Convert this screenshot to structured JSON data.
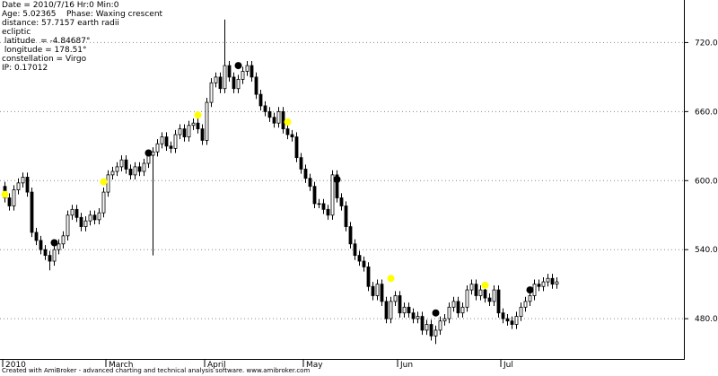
{
  "chart_data": {
    "type": "candlestick",
    "info_lines": [
      "Date = 2010/7/16 Hr:0 Min:0",
      "Age: 5.02365    Phase: Waxing crescent",
      "distance: 57.7157 earth radii",
      "ecliptic",
      " latitude  = -4.84687°",
      " longitude = 178.51°",
      "constellation = Virgo",
      "IP: 0.17012"
    ],
    "footer": "Created with AmiBroker - advanced charting and technical analysis software. www.amibroker.com",
    "categories": [
      "2010",
      null,
      null,
      null,
      null,
      null,
      null,
      null,
      null,
      null,
      null,
      null,
      null,
      null,
      null,
      null,
      null,
      null,
      null,
      null,
      null,
      null,
      null,
      "March",
      null,
      null,
      null,
      null,
      null,
      null,
      null,
      null,
      null,
      null,
      null,
      null,
      null,
      null,
      null,
      null,
      null,
      null,
      null,
      null,
      null,
      "April",
      null,
      null,
      null,
      null,
      null,
      null,
      null,
      null,
      null,
      null,
      null,
      null,
      null,
      null,
      null,
      null,
      null,
      null,
      null,
      null,
      null,
      "May",
      null,
      null,
      null,
      null,
      null,
      null,
      null,
      null,
      null,
      null,
      null,
      null,
      null,
      null,
      null,
      null,
      null,
      null,
      null,
      null,
      "Jun",
      null,
      null,
      null,
      null,
      null,
      null,
      null,
      null,
      null,
      null,
      null,
      null,
      null,
      null,
      null,
      null,
      null,
      null,
      null,
      null,
      null,
      null,
      "Jul",
      null,
      null,
      null,
      null,
      null,
      null,
      null,
      null,
      null,
      null,
      null,
      null
    ],
    "open": [
      595,
      585,
      578,
      592,
      598,
      603,
      590,
      555,
      548,
      540,
      535,
      530,
      540,
      545,
      552,
      570,
      575,
      568,
      560,
      565,
      570,
      566,
      572,
      590,
      605,
      608,
      612,
      618,
      610,
      605,
      612,
      608,
      615,
      622,
      625,
      632,
      638,
      630,
      628,
      640,
      645,
      638,
      648,
      650,
      645,
      635,
      668,
      685,
      690,
      680,
      700,
      690,
      680,
      688,
      695,
      700,
      690,
      675,
      665,
      660,
      655,
      650,
      660,
      645,
      640,
      638,
      620,
      610,
      602,
      595,
      580,
      580,
      575,
      570,
      605,
      585,
      578,
      560,
      545,
      535,
      530,
      525,
      508,
      500,
      510,
      495,
      480,
      495,
      500,
      485,
      490,
      485,
      480,
      482,
      470,
      475,
      465,
      470,
      478,
      480,
      490,
      495,
      485,
      490,
      505,
      510,
      500,
      505,
      498,
      495,
      505,
      485,
      480,
      478,
      475,
      482,
      490,
      495,
      500,
      510,
      508,
      512,
      515,
      510
    ],
    "high": [
      599,
      589,
      596,
      602,
      607,
      607,
      594,
      559,
      552,
      544,
      539,
      544,
      549,
      556,
      574,
      579,
      579,
      572,
      569,
      574,
      574,
      576,
      594,
      609,
      612,
      616,
      622,
      622,
      614,
      616,
      616,
      619,
      626,
      629,
      636,
      642,
      642,
      634,
      644,
      649,
      649,
      652,
      654,
      654,
      649,
      672,
      689,
      694,
      694,
      740,
      704,
      694,
      692,
      699,
      704,
      704,
      694,
      679,
      669,
      664,
      659,
      664,
      664,
      649,
      644,
      642,
      624,
      614,
      606,
      599,
      584,
      584,
      579,
      609,
      609,
      589,
      582,
      564,
      549,
      539,
      534,
      529,
      512,
      514,
      514,
      499,
      499,
      504,
      504,
      494,
      494,
      489,
      486,
      486,
      479,
      479,
      474,
      482,
      484,
      494,
      499,
      499,
      494,
      509,
      514,
      514,
      509,
      509,
      502,
      509,
      509,
      489,
      484,
      482,
      486,
      494,
      499,
      504,
      514,
      514,
      516,
      519,
      519,
      516
    ],
    "low": [
      581,
      574,
      574,
      588,
      594,
      586,
      551,
      544,
      536,
      531,
      522,
      526,
      536,
      541,
      548,
      566,
      564,
      556,
      556,
      561,
      562,
      562,
      568,
      586,
      601,
      604,
      608,
      606,
      601,
      601,
      604,
      604,
      611,
      535,
      621,
      628,
      626,
      624,
      624,
      636,
      634,
      634,
      644,
      641,
      631,
      631,
      664,
      681,
      676,
      676,
      686,
      676,
      676,
      684,
      691,
      686,
      671,
      661,
      656,
      651,
      646,
      646,
      641,
      636,
      634,
      616,
      606,
      598,
      591,
      576,
      576,
      571,
      566,
      566,
      581,
      574,
      556,
      541,
      531,
      526,
      521,
      504,
      496,
      496,
      491,
      476,
      476,
      491,
      481,
      481,
      481,
      476,
      476,
      466,
      466,
      461,
      458,
      466,
      474,
      476,
      486,
      481,
      481,
      486,
      501,
      496,
      496,
      494,
      491,
      491,
      481,
      476,
      474,
      471,
      471,
      478,
      486,
      491,
      496,
      504,
      504,
      508,
      506,
      506
    ],
    "close": [
      585,
      578,
      592,
      598,
      603,
      590,
      555,
      548,
      540,
      535,
      530,
      540,
      545,
      552,
      570,
      575,
      568,
      560,
      565,
      570,
      566,
      572,
      590,
      605,
      608,
      612,
      618,
      610,
      605,
      612,
      608,
      615,
      622,
      625,
      632,
      638,
      630,
      628,
      640,
      645,
      638,
      648,
      650,
      645,
      635,
      668,
      685,
      690,
      680,
      700,
      690,
      680,
      688,
      695,
      700,
      690,
      675,
      665,
      660,
      655,
      650,
      660,
      645,
      640,
      638,
      620,
      610,
      602,
      595,
      580,
      580,
      575,
      570,
      605,
      585,
      578,
      560,
      545,
      535,
      530,
      525,
      508,
      500,
      510,
      495,
      480,
      495,
      500,
      485,
      490,
      485,
      480,
      482,
      470,
      475,
      465,
      470,
      478,
      480,
      490,
      495,
      485,
      490,
      505,
      510,
      500,
      505,
      498,
      495,
      505,
      485,
      480,
      478,
      475,
      482,
      490,
      495,
      500,
      510,
      508,
      512,
      515,
      510,
      512
    ],
    "markers": [
      {
        "index": 0,
        "value": 588,
        "color": "#ffff00"
      },
      {
        "index": 11,
        "value": 546,
        "color": "#000000"
      },
      {
        "index": 22,
        "value": 599,
        "color": "#ffff00"
      },
      {
        "index": 32,
        "value": 624,
        "color": "#000000"
      },
      {
        "index": 43,
        "value": 657,
        "color": "#ffff00"
      },
      {
        "index": 52,
        "value": 700,
        "color": "#000000"
      },
      {
        "index": 63,
        "value": 651,
        "color": "#ffff00"
      },
      {
        "index": 74,
        "value": 601,
        "color": "#000000"
      },
      {
        "index": 86,
        "value": 515,
        "color": "#ffff00"
      },
      {
        "index": 96,
        "value": 485,
        "color": "#000000"
      },
      {
        "index": 107,
        "value": 509,
        "color": "#ffff00"
      },
      {
        "index": 117,
        "value": 505,
        "color": "#000000"
      }
    ],
    "ylim": [
      445,
      757
    ],
    "yticks": [
      {
        "value": 480,
        "label": "480.0"
      },
      {
        "value": 540,
        "label": "540.0"
      },
      {
        "value": 600,
        "label": "600.0"
      },
      {
        "value": 660,
        "label": "660.0"
      },
      {
        "value": 720,
        "label": "720.0"
      }
    ],
    "grid": true,
    "up_color": "#ffffff",
    "down_color": "#000000"
  }
}
